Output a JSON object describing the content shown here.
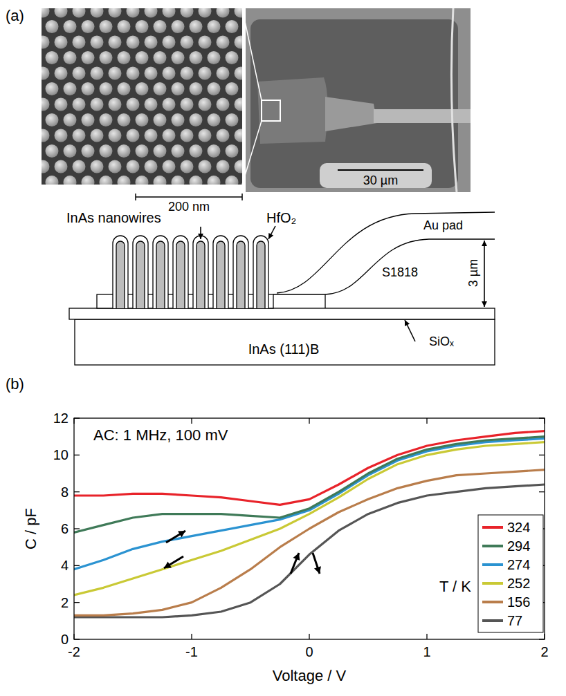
{
  "figure": {
    "panel_a": {
      "label": "(a)",
      "scale_bar_sem": "200 nm",
      "scale_bar_overview": "30 µm",
      "schematic": {
        "nanowires": "InAs nanowires",
        "oxide": "HfO₂",
        "pad": "Au pad",
        "resist": "S1818",
        "thickness": "3 µm",
        "insulator": "SiOₓ",
        "substrate": "InAs (111)B"
      }
    },
    "panel_b": {
      "label": "(b)"
    }
  },
  "chart_data": {
    "type": "line",
    "x_label": "Voltage / V",
    "y_label": "C / pF",
    "annotations": [
      "AC: 1 MHz, 100 mV"
    ],
    "legend_title": "T / K",
    "legend": "lower right",
    "x": [
      -2,
      -1.75,
      -1.5,
      -1.25,
      -1,
      -0.75,
      -0.5,
      -0.25,
      0,
      0.25,
      0.5,
      0.75,
      1,
      1.25,
      1.5,
      1.75,
      2
    ],
    "xlim": [
      -2,
      2
    ],
    "xticks": [
      -2,
      -1,
      0,
      1,
      2
    ],
    "ylim": [
      0,
      12
    ],
    "yticks": [
      0,
      2,
      4,
      6,
      8,
      10,
      12
    ],
    "grid": false,
    "series": [
      {
        "name": "324",
        "color": "#e8232a",
        "values": [
          7.8,
          7.8,
          7.9,
          7.9,
          7.8,
          7.7,
          7.5,
          7.3,
          7.6,
          8.4,
          9.3,
          10.0,
          10.5,
          10.8,
          11.0,
          11.2,
          11.3
        ]
      },
      {
        "name": "294",
        "color": "#3f7a58",
        "values": [
          5.8,
          6.2,
          6.6,
          6.8,
          6.8,
          6.8,
          6.7,
          6.6,
          7.1,
          8.0,
          9.0,
          9.8,
          10.3,
          10.6,
          10.8,
          10.9,
          11.0
        ]
      },
      {
        "name": "274",
        "color": "#2b93d1",
        "values": [
          3.8,
          4.3,
          4.9,
          5.3,
          5.6,
          5.9,
          6.2,
          6.5,
          7.0,
          7.9,
          8.9,
          9.7,
          10.2,
          10.5,
          10.7,
          10.8,
          10.9
        ]
      },
      {
        "name": "252",
        "color": "#c9c935",
        "values": [
          2.4,
          2.8,
          3.3,
          3.8,
          4.3,
          4.8,
          5.4,
          6.0,
          6.8,
          7.7,
          8.7,
          9.5,
          10.0,
          10.3,
          10.5,
          10.6,
          10.7
        ]
      },
      {
        "name": "156",
        "color": "#b97d4b",
        "values": [
          1.3,
          1.3,
          1.4,
          1.6,
          2.0,
          2.8,
          3.8,
          5.0,
          6.0,
          6.9,
          7.6,
          8.2,
          8.6,
          8.9,
          9.0,
          9.1,
          9.2
        ]
      },
      {
        "name": "77",
        "color": "#555555",
        "values": [
          1.2,
          1.2,
          1.2,
          1.2,
          1.3,
          1.5,
          2.0,
          3.0,
          4.6,
          5.9,
          6.8,
          7.4,
          7.8,
          8.0,
          8.2,
          8.3,
          8.4
        ]
      }
    ]
  }
}
